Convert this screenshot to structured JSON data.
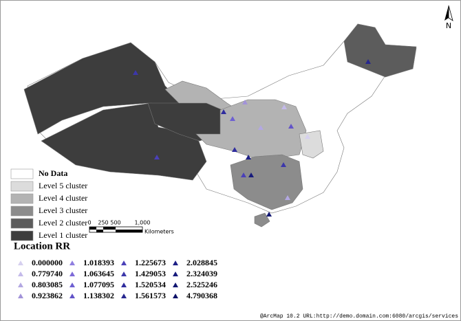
{
  "legend": {
    "items": [
      "No Data",
      "Level 5 cluster",
      "Level 4 cluster",
      "Level 3 cluster",
      "Level 2 cluster",
      "Level 1 cluster"
    ]
  },
  "scale_bar": {
    "ticks": [
      "0",
      "250",
      "500",
      "1,000"
    ],
    "unit": "Kilometers"
  },
  "north_arrow": "N",
  "location_rr": {
    "title": "Location RR",
    "values": [
      "0.000000",
      "0.779740",
      "0.803085",
      "0.923862",
      "1.018393",
      "1.063645",
      "1.077095",
      "1.138302",
      "1.225673",
      "1.429053",
      "1.520534",
      "1.561573",
      "2.028845",
      "2.324039",
      "2.525246",
      "4.790368"
    ]
  },
  "footer": "@ArcMap 10.2 URL:http://demo.domain.com:6080/arcgis/services"
}
